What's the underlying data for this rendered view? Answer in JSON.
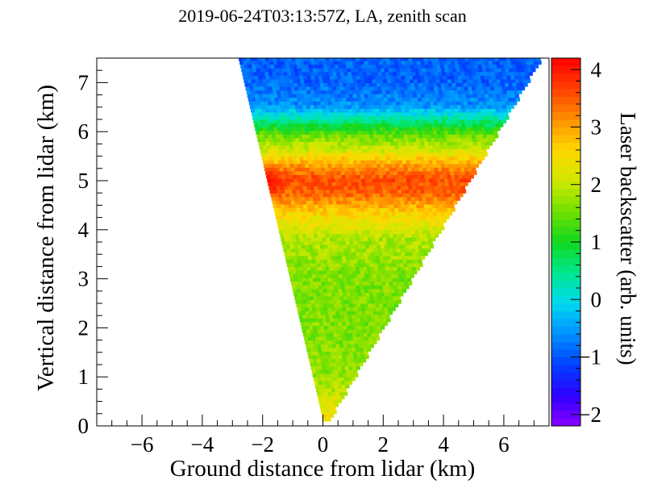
{
  "chart_data": {
    "type": "heatmap",
    "title": "2019-06-24T03:13:57Z, LA, zenith scan",
    "xlabel": "Ground distance from lidar (km)",
    "ylabel": "Vertical distance from lidar (km)",
    "colorbar_label": "Laser backscatter (arb. units)",
    "xlim": [
      -7.5,
      7.5
    ],
    "ylim": [
      0,
      7.5
    ],
    "zlim": [
      -2.2,
      4.2
    ],
    "x_ticks": [
      -6,
      -4,
      -2,
      0,
      2,
      4,
      6
    ],
    "x_tick_labels": [
      "−6",
      "−4",
      "−2",
      "0",
      "2",
      "4",
      "6"
    ],
    "y_ticks": [
      0,
      1,
      2,
      3,
      4,
      5,
      6,
      7
    ],
    "y_tick_labels": [
      "0",
      "1",
      "2",
      "3",
      "4",
      "5",
      "6",
      "7"
    ],
    "z_ticks": [
      -2,
      -1,
      0,
      1,
      2,
      3,
      4
    ],
    "z_tick_labels": [
      "−2",
      "−1",
      "0",
      "1",
      "2",
      "3",
      "4"
    ],
    "scan_cone": {
      "apex_x": 0.1,
      "apex_y": 0.1,
      "left_edge_slope": -0.38,
      "right_edge_slope": 0.95
    },
    "vertical_profile": [
      {
        "height": 0.1,
        "backscatter": 2.6
      },
      {
        "height": 0.3,
        "backscatter": 2.3
      },
      {
        "height": 1.0,
        "backscatter": 1.7
      },
      {
        "height": 2.0,
        "backscatter": 1.6
      },
      {
        "height": 3.0,
        "backscatter": 1.6
      },
      {
        "height": 3.8,
        "backscatter": 1.9
      },
      {
        "height": 4.3,
        "backscatter": 2.6
      },
      {
        "height": 4.7,
        "backscatter": 3.4
      },
      {
        "height": 5.0,
        "backscatter": 3.6
      },
      {
        "height": 5.3,
        "backscatter": 3.0
      },
      {
        "height": 5.6,
        "backscatter": 2.1
      },
      {
        "height": 5.9,
        "backscatter": 1.5
      },
      {
        "height": 6.2,
        "backscatter": 0.5
      },
      {
        "height": 6.5,
        "backscatter": -0.6
      },
      {
        "height": 7.0,
        "backscatter": -0.9
      },
      {
        "height": 7.5,
        "backscatter": -0.9
      }
    ],
    "hotspot": {
      "x": -1.9,
      "y": 4.95,
      "backscatter": 4.2
    },
    "colorscale": [
      "#8a00ff",
      "#2d00ff",
      "#0040ff",
      "#0090ff",
      "#00d8f0",
      "#00e890",
      "#10d820",
      "#70e000",
      "#d0e800",
      "#ffd800",
      "#ff9000",
      "#ff4000",
      "#ff0000"
    ]
  }
}
